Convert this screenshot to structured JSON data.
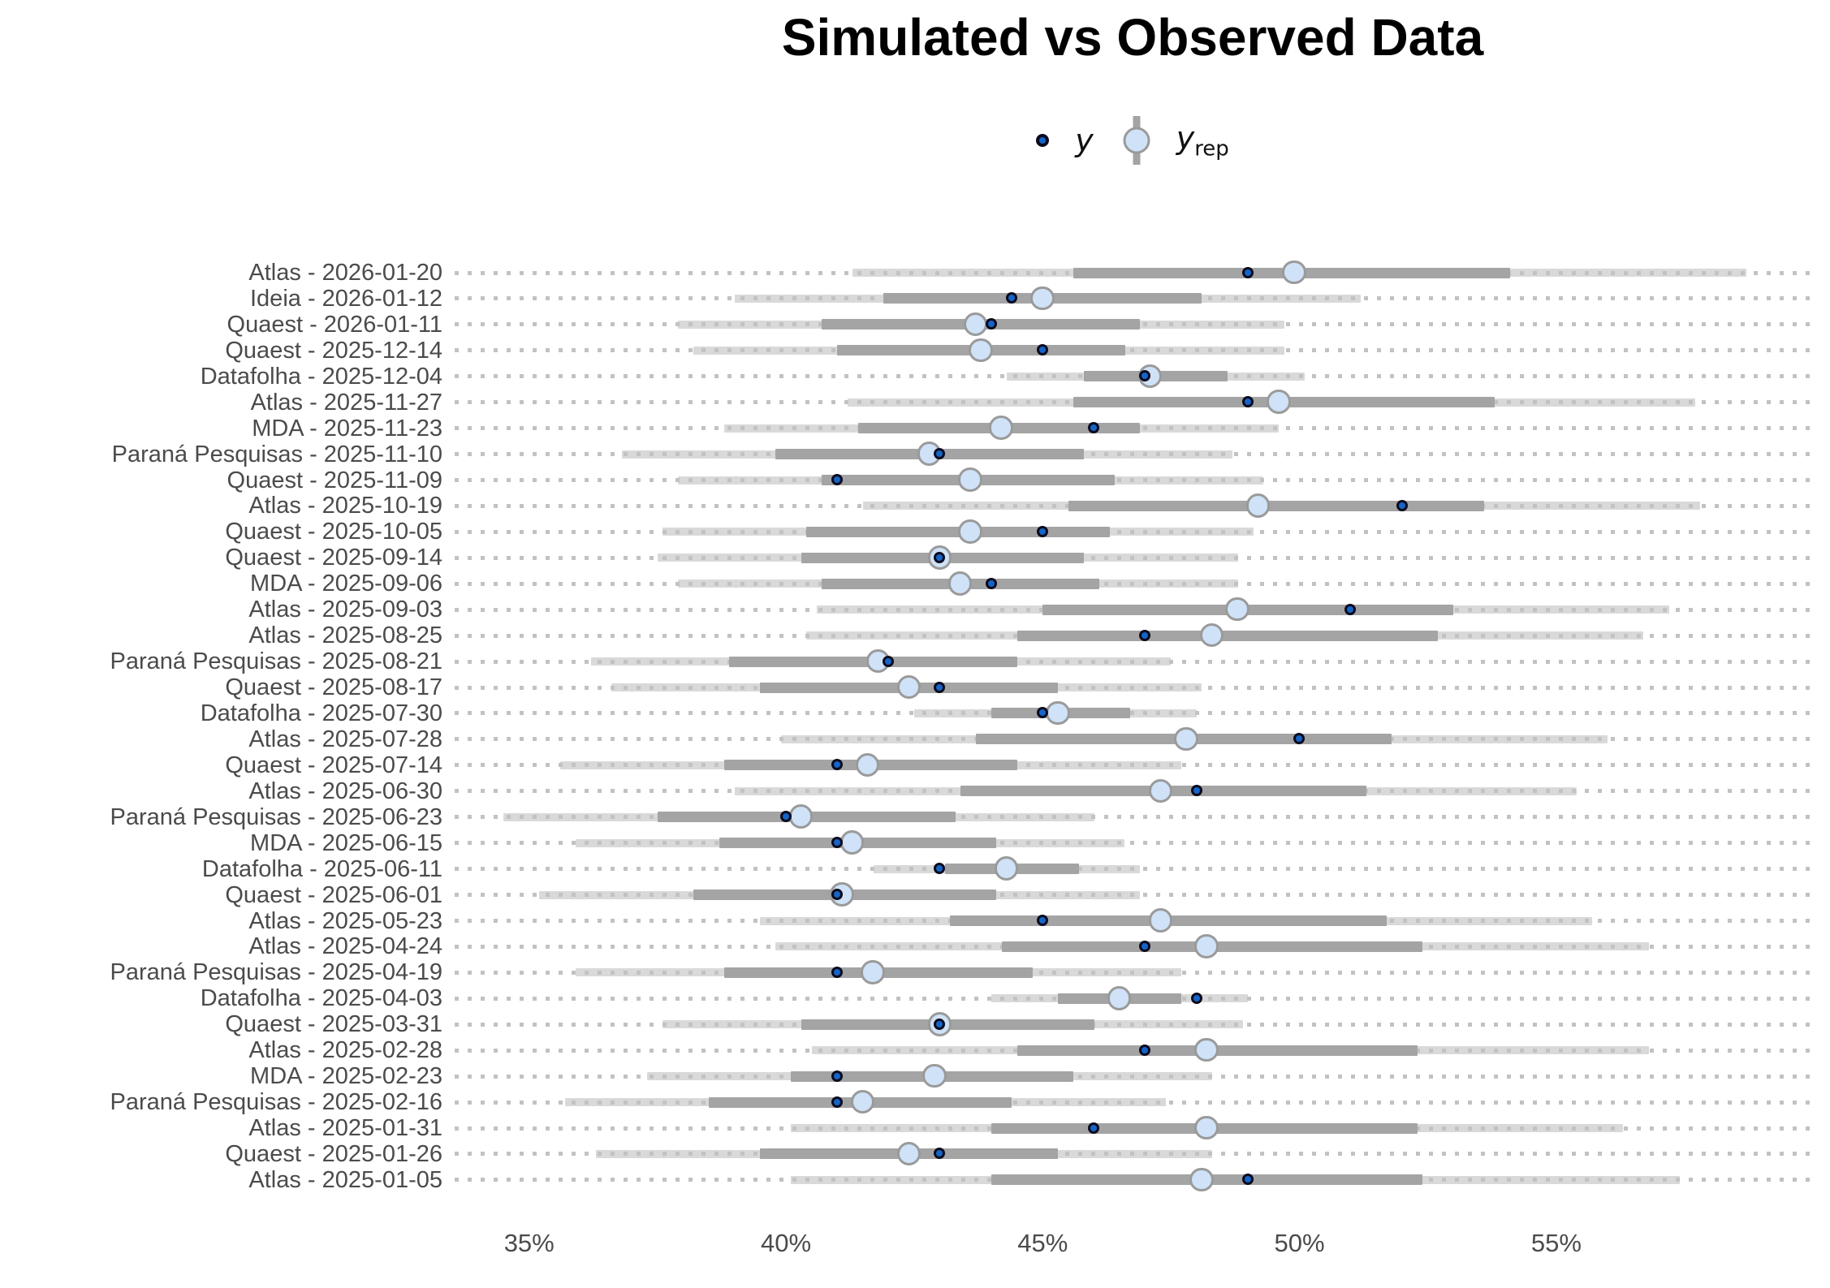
{
  "title": "Simulated vs Observed Data",
  "legend": {
    "y_label": "y",
    "yrep_main": "y",
    "yrep_sub": "rep"
  },
  "colors": {
    "title_text": "#000000",
    "axis_text": "#4b4b4b",
    "dotted_line": "#c2c2c2",
    "outer_interval": "#d9d9d9",
    "inner_interval": "#a4a4a4",
    "yrep_fill": "#cfe2f7",
    "yrep_stroke": "#9a9a9a",
    "y_fill": "#1565c8",
    "y_stroke": "#0b0b1e"
  },
  "chart_data": {
    "type": "interval",
    "title": "Simulated vs Observed Data",
    "orientation": "horizontal",
    "legend_entries": [
      "y",
      "y_rep"
    ],
    "legend_position": "top-center",
    "grid": "dotted-row-lines",
    "xlabel": "",
    "ylabel": "",
    "x_axis": {
      "format": "percent",
      "tick_values": [
        35,
        40,
        45,
        50,
        55
      ],
      "tick_labels": [
        "35%",
        "40%",
        "45%",
        "50%",
        "55%"
      ],
      "range": [
        33.55,
        59.95
      ]
    },
    "series_note": "outer = light gray wide interval of y_rep, inner = dark gray 50% interval, median = y_rep median (light blue circle), y = observed value (navy dot); units are percent",
    "rows": [
      {
        "label": "Atlas - 2026-01-20",
        "outer": [
          41.3,
          58.7
        ],
        "inner": [
          45.6,
          54.1
        ],
        "median": 49.9,
        "y": 49.0
      },
      {
        "label": "Ideia - 2026-01-12",
        "outer": [
          39.0,
          51.2
        ],
        "inner": [
          41.9,
          48.1
        ],
        "median": 45.0,
        "y": 44.4
      },
      {
        "label": "Quaest - 2026-01-11",
        "outer": [
          37.9,
          49.7
        ],
        "inner": [
          40.7,
          46.9
        ],
        "median": 43.7,
        "y": 44.0
      },
      {
        "label": "Quaest - 2025-12-14",
        "outer": [
          38.2,
          49.7
        ],
        "inner": [
          41.0,
          46.6
        ],
        "median": 43.8,
        "y": 45.0
      },
      {
        "label": "Datafolha - 2025-12-04",
        "outer": [
          44.3,
          50.1
        ],
        "inner": [
          45.8,
          48.6
        ],
        "median": 47.1,
        "y": 47.0
      },
      {
        "label": "Atlas - 2025-11-27",
        "outer": [
          41.2,
          57.7
        ],
        "inner": [
          45.6,
          53.8
        ],
        "median": 49.6,
        "y": 49.0
      },
      {
        "label": "MDA - 2025-11-23",
        "outer": [
          38.8,
          49.6
        ],
        "inner": [
          41.4,
          46.9
        ],
        "median": 44.2,
        "y": 46.0
      },
      {
        "label": "Paraná Pesquisas - 2025-11-10",
        "outer": [
          36.8,
          48.7
        ],
        "inner": [
          39.8,
          45.8
        ],
        "median": 42.8,
        "y": 43.0
      },
      {
        "label": "Quaest - 2025-11-09",
        "outer": [
          37.9,
          49.3
        ],
        "inner": [
          40.7,
          46.4
        ],
        "median": 43.6,
        "y": 41.0
      },
      {
        "label": "Atlas - 2025-10-19",
        "outer": [
          41.5,
          57.8
        ],
        "inner": [
          45.5,
          53.6
        ],
        "median": 49.2,
        "y": 52.0
      },
      {
        "label": "Quaest - 2025-10-05",
        "outer": [
          37.6,
          49.1
        ],
        "inner": [
          40.4,
          46.3
        ],
        "median": 43.6,
        "y": 45.0
      },
      {
        "label": "Quaest - 2025-09-14",
        "outer": [
          37.5,
          48.8
        ],
        "inner": [
          40.3,
          45.8
        ],
        "median": 43.0,
        "y": 43.0
      },
      {
        "label": "MDA - 2025-09-06",
        "outer": [
          37.9,
          48.8
        ],
        "inner": [
          40.7,
          46.1
        ],
        "median": 43.4,
        "y": 44.0
      },
      {
        "label": "Atlas - 2025-09-03",
        "outer": [
          40.6,
          57.2
        ],
        "inner": [
          45.0,
          53.0
        ],
        "median": 48.8,
        "y": 51.0
      },
      {
        "label": "Atlas - 2025-08-25",
        "outer": [
          40.4,
          56.7
        ],
        "inner": [
          44.5,
          52.7
        ],
        "median": 48.3,
        "y": 47.0
      },
      {
        "label": "Paraná Pesquisas - 2025-08-21",
        "outer": [
          36.2,
          47.5
        ],
        "inner": [
          38.9,
          44.5
        ],
        "median": 41.8,
        "y": 42.0
      },
      {
        "label": "Quaest - 2025-08-17",
        "outer": [
          36.6,
          48.1
        ],
        "inner": [
          39.5,
          45.3
        ],
        "median": 42.4,
        "y": 43.0
      },
      {
        "label": "Datafolha - 2025-07-30",
        "outer": [
          42.5,
          48.0
        ],
        "inner": [
          44.0,
          46.7
        ],
        "median": 45.3,
        "y": 45.0
      },
      {
        "label": "Atlas - 2025-07-28",
        "outer": [
          39.9,
          56.0
        ],
        "inner": [
          43.7,
          51.8
        ],
        "median": 47.8,
        "y": 50.0
      },
      {
        "label": "Quaest - 2025-07-14",
        "outer": [
          35.6,
          47.7
        ],
        "inner": [
          38.8,
          44.5
        ],
        "median": 41.6,
        "y": 41.0
      },
      {
        "label": "Atlas - 2025-06-30",
        "outer": [
          39.0,
          55.4
        ],
        "inner": [
          43.4,
          51.3
        ],
        "median": 47.3,
        "y": 48.0
      },
      {
        "label": "Paraná Pesquisas - 2025-06-23",
        "outer": [
          34.5,
          46.0
        ],
        "inner": [
          37.5,
          43.3
        ],
        "median": 40.3,
        "y": 40.0
      },
      {
        "label": "MDA - 2025-06-15",
        "outer": [
          35.9,
          46.6
        ],
        "inner": [
          38.7,
          44.1
        ],
        "median": 41.3,
        "y": 41.0
      },
      {
        "label": "Datafolha - 2025-06-11",
        "outer": [
          41.7,
          46.9
        ],
        "inner": [
          43.1,
          45.7
        ],
        "median": 44.3,
        "y": 43.0
      },
      {
        "label": "Quaest - 2025-06-01",
        "outer": [
          35.2,
          46.9
        ],
        "inner": [
          38.2,
          44.1
        ],
        "median": 41.1,
        "y": 41.0
      },
      {
        "label": "Atlas - 2025-05-23",
        "outer": [
          39.5,
          55.7
        ],
        "inner": [
          43.2,
          51.7
        ],
        "median": 47.3,
        "y": 45.0
      },
      {
        "label": "Atlas - 2025-04-24",
        "outer": [
          39.8,
          56.8
        ],
        "inner": [
          44.2,
          52.4
        ],
        "median": 48.2,
        "y": 47.0
      },
      {
        "label": "Paraná Pesquisas - 2025-04-19",
        "outer": [
          35.9,
          47.7
        ],
        "inner": [
          38.8,
          44.8
        ],
        "median": 41.7,
        "y": 41.0
      },
      {
        "label": "Datafolha - 2025-04-03",
        "outer": [
          44.0,
          49.0
        ],
        "inner": [
          45.3,
          47.7
        ],
        "median": 46.5,
        "y": 48.0
      },
      {
        "label": "Quaest - 2025-03-31",
        "outer": [
          37.6,
          48.9
        ],
        "inner": [
          40.3,
          46.0
        ],
        "median": 43.0,
        "y": 43.0
      },
      {
        "label": "Atlas - 2025-02-28",
        "outer": [
          40.5,
          56.8
        ],
        "inner": [
          44.5,
          52.3
        ],
        "median": 48.2,
        "y": 47.0
      },
      {
        "label": "MDA - 2025-02-23",
        "outer": [
          37.3,
          48.3
        ],
        "inner": [
          40.1,
          45.6
        ],
        "median": 42.9,
        "y": 41.0
      },
      {
        "label": "Paraná Pesquisas - 2025-02-16",
        "outer": [
          35.7,
          47.4
        ],
        "inner": [
          38.5,
          44.4
        ],
        "median": 41.5,
        "y": 41.0
      },
      {
        "label": "Atlas - 2025-01-31",
        "outer": [
          40.1,
          56.3
        ],
        "inner": [
          44.0,
          52.3
        ],
        "median": 48.2,
        "y": 46.0
      },
      {
        "label": "Quaest - 2025-01-26",
        "outer": [
          36.3,
          48.3
        ],
        "inner": [
          39.5,
          45.3
        ],
        "median": 42.4,
        "y": 43.0
      },
      {
        "label": "Atlas - 2025-01-05",
        "outer": [
          40.1,
          57.4
        ],
        "inner": [
          44.0,
          52.4
        ],
        "median": 48.1,
        "y": 49.0
      }
    ]
  }
}
